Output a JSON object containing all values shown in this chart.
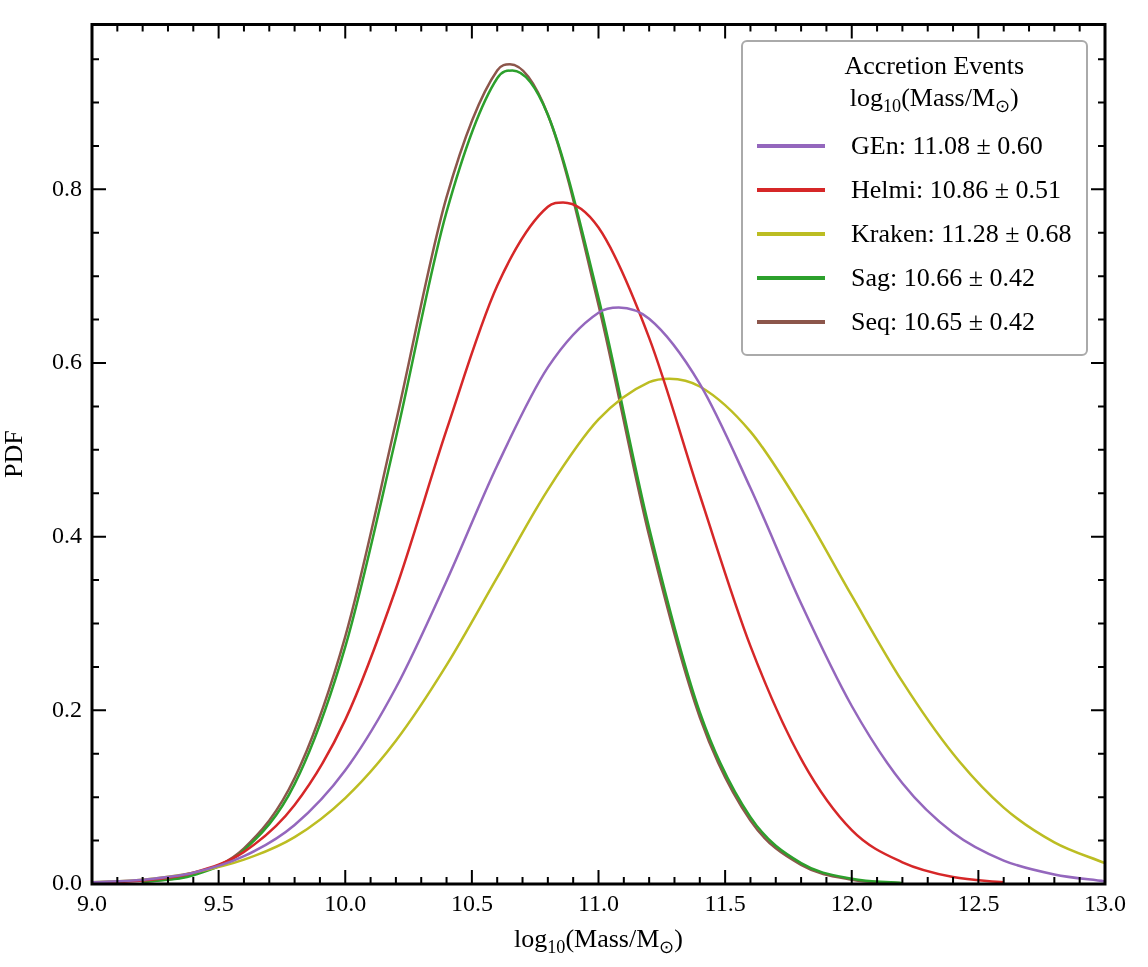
{
  "chart_data": {
    "type": "line",
    "xlabel": "log$_{10}$(Mass/M$_{⊙}$)",
    "ylabel": "PDF",
    "legend_title": "Accretion Events\nlog$_{10}$(Mass/M$_{⊙}$)",
    "xlim": [
      9,
      13
    ],
    "ylim": [
      0,
      0.99
    ],
    "xticks": [
      {
        "value": 9,
        "label": "9.0"
      },
      {
        "value": 9.1,
        "label": null
      },
      {
        "value": 9.2,
        "label": null
      },
      {
        "value": 9.3,
        "label": null
      },
      {
        "value": 9.4,
        "label": null
      },
      {
        "value": 9.5,
        "label": "9.5"
      },
      {
        "value": 9.6,
        "label": null
      },
      {
        "value": 9.7,
        "label": null
      },
      {
        "value": 9.8,
        "label": null
      },
      {
        "value": 9.9,
        "label": null
      },
      {
        "value": 10,
        "label": "10.0"
      },
      {
        "value": 10.1,
        "label": null
      },
      {
        "value": 10.2,
        "label": null
      },
      {
        "value": 10.3,
        "label": null
      },
      {
        "value": 10.4,
        "label": null
      },
      {
        "value": 10.5,
        "label": "10.5"
      },
      {
        "value": 10.6,
        "label": null
      },
      {
        "value": 10.7,
        "label": null
      },
      {
        "value": 10.8,
        "label": null
      },
      {
        "value": 10.9,
        "label": null
      },
      {
        "value": 11,
        "label": "11.0"
      },
      {
        "value": 11.1,
        "label": null
      },
      {
        "value": 11.2,
        "label": null
      },
      {
        "value": 11.3,
        "label": null
      },
      {
        "value": 11.4,
        "label": null
      },
      {
        "value": 11.5,
        "label": "11.5"
      },
      {
        "value": 11.6,
        "label": null
      },
      {
        "value": 11.7,
        "label": null
      },
      {
        "value": 11.8,
        "label": null
      },
      {
        "value": 11.9,
        "label": null
      },
      {
        "value": 12,
        "label": "12.0"
      },
      {
        "value": 12.1,
        "label": null
      },
      {
        "value": 12.2,
        "label": null
      },
      {
        "value": 12.3,
        "label": null
      },
      {
        "value": 12.4,
        "label": null
      },
      {
        "value": 12.5,
        "label": "12.5"
      },
      {
        "value": 12.6,
        "label": null
      },
      {
        "value": 12.7,
        "label": null
      },
      {
        "value": 12.8,
        "label": null
      },
      {
        "value": 12.9,
        "label": null
      },
      {
        "value": 13,
        "label": "13.0"
      }
    ],
    "yticks": [
      {
        "value": 0,
        "label": "0.0"
      },
      {
        "value": 0.05,
        "label": null
      },
      {
        "value": 0.1,
        "label": null
      },
      {
        "value": 0.15,
        "label": null
      },
      {
        "value": 0.2,
        "label": "0.2"
      },
      {
        "value": 0.25,
        "label": null
      },
      {
        "value": 0.3,
        "label": null
      },
      {
        "value": 0.35,
        "label": null
      },
      {
        "value": 0.4,
        "label": "0.4"
      },
      {
        "value": 0.45,
        "label": null
      },
      {
        "value": 0.5,
        "label": null
      },
      {
        "value": 0.55,
        "label": null
      },
      {
        "value": 0.6,
        "label": "0.6"
      },
      {
        "value": 0.65,
        "label": null
      },
      {
        "value": 0.7,
        "label": null
      },
      {
        "value": 0.75,
        "label": null
      },
      {
        "value": 0.8,
        "label": "0.8"
      },
      {
        "value": 0.85,
        "label": null
      },
      {
        "value": 0.9,
        "label": null
      },
      {
        "value": 0.95,
        "label": null
      }
    ],
    "grid": false,
    "legend": "top right",
    "marker": "none",
    "line_style": "solid",
    "series": [
      {
        "name": "GEn: 11.08 ± 0.60",
        "color": "#9467bd",
        "x": [
          9,
          9.2,
          9.4,
          9.6,
          9.8,
          10,
          10.2,
          10.4,
          10.6,
          10.8,
          11,
          11.08,
          11.2,
          11.4,
          11.6,
          11.8,
          12,
          12.2,
          12.4,
          12.6,
          12.8,
          13
        ],
        "values": [
          0.002,
          0.005,
          0.013,
          0.032,
          0.068,
          0.131,
          0.226,
          0.349,
          0.482,
          0.595,
          0.658,
          0.664,
          0.651,
          0.576,
          0.456,
          0.323,
          0.205,
          0.116,
          0.059,
          0.027,
          0.011,
          0.003
        ]
      },
      {
        "name": "Helmi: 10.86 ± 0.51",
        "color": "#d62728",
        "x": [
          9,
          9.2,
          9.4,
          9.6,
          9.8,
          10,
          10.2,
          10.4,
          10.6,
          10.8,
          10.86,
          11,
          11.2,
          11.4,
          11.6,
          11.8,
          12,
          12.2,
          12.4,
          12.6
        ],
        "values": [
          0.001,
          0.004,
          0.013,
          0.037,
          0.091,
          0.189,
          0.34,
          0.523,
          0.689,
          0.78,
          0.785,
          0.756,
          0.629,
          0.448,
          0.274,
          0.144,
          0.062,
          0.025,
          0.008,
          0.002
        ]
      },
      {
        "name": "Kraken: 11.28 ± 0.68",
        "color": "#bcbd22",
        "x": [
          9,
          9.2,
          9.4,
          9.6,
          9.8,
          10,
          10.2,
          10.4,
          10.6,
          10.8,
          11,
          11.2,
          11.28,
          11.4,
          11.6,
          11.8,
          12,
          12.2,
          12.4,
          12.6,
          12.8,
          13
        ],
        "values": [
          0.002,
          0.005,
          0.013,
          0.028,
          0.054,
          0.099,
          0.165,
          0.252,
          0.353,
          0.454,
          0.535,
          0.578,
          0.582,
          0.573,
          0.521,
          0.434,
          0.332,
          0.233,
          0.15,
          0.088,
          0.048,
          0.024
        ]
      },
      {
        "name": "Sag: 10.66 ± 0.42",
        "color": "#2ca02c",
        "x": [
          9.2,
          9.4,
          9.6,
          9.8,
          10,
          10.2,
          10.4,
          10.6,
          10.66,
          10.8,
          11,
          11.2,
          11.4,
          11.6,
          11.8,
          12,
          12.2
        ],
        "values": [
          0.002,
          0.01,
          0.039,
          0.115,
          0.273,
          0.514,
          0.774,
          0.928,
          0.937,
          0.886,
          0.675,
          0.41,
          0.198,
          0.077,
          0.024,
          0.006,
          0.001
        ]
      },
      {
        "name": "Seq: 10.65 ± 0.42",
        "color": "#8c564b",
        "x": [
          9.2,
          9.4,
          9.6,
          9.8,
          10,
          10.2,
          10.4,
          10.6,
          10.65,
          10.8,
          11,
          11.2,
          11.4,
          11.6,
          11.8,
          12,
          12.2
        ],
        "values": [
          0.002,
          0.011,
          0.041,
          0.122,
          0.285,
          0.532,
          0.791,
          0.937,
          0.944,
          0.886,
          0.667,
          0.401,
          0.192,
          0.073,
          0.022,
          0.005,
          0.001
        ]
      }
    ]
  }
}
